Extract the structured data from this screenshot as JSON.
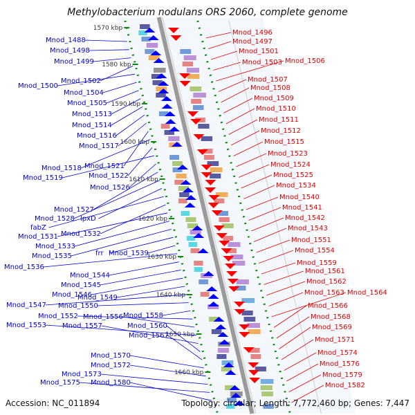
{
  "title": "Methylobacterium nodulans ORS 2060, complete genome",
  "footer": {
    "accession": "Accession: NC_011894",
    "stats": "Topology: circular; Length: 7,772,460 bp; Genes: 7,447"
  },
  "colors": {
    "left_label": "#0000cc",
    "right_label": "#dd0000",
    "backbone": "#9a9a9a",
    "dotted_track": "#0a8a0a",
    "forward_gene": "#0000ff",
    "reverse_gene": "#ff0000"
  },
  "scale_ticks": [
    "1570 kbp",
    "1580 kbp",
    "1590 kbp",
    "1600 kbp",
    "1610 kbp",
    "1620 kbp",
    "1630 kbp",
    "1640 kbp",
    "1650 kbp",
    "1660 kbp"
  ],
  "left_labels": [
    "Mnod_1488",
    "Mnod_1498",
    "Mnod_1499",
    "Mnod_1502",
    "Mnod_1500",
    "Mnod_1504",
    "Mnod_1505",
    "Mnod_1513",
    "Mnod_1514",
    "Mnod_1516",
    "Mnod_1517",
    "Mnod_1521",
    "Mnod_1518",
    "Mnod_1522",
    "Mnod_1519",
    "Mnod_1526",
    "Mnod_1527",
    "Mnod_1528",
    "lpxD",
    "fabZ",
    "Mnod_1532",
    "Mnod_1531",
    "Mnod_1533",
    "Mnod_1535",
    "frr",
    "Mnod_1539",
    "Mnod_1536",
    "Mnod_1544",
    "Mnod_1545",
    "Mnod_1546",
    "Mnod_1549",
    "Mnod_1547",
    "Mnod_1550",
    "Mnod_1558",
    "Mnod_1552",
    "Mnod_1556",
    "Mnod_1553",
    "Mnod_1557",
    "Mnod_1560",
    "Mnod_1567",
    "Mnod_1570",
    "Mnod_1572",
    "Mnod_1573",
    "Mnod_1575",
    "Mnod_1580"
  ],
  "right_labels": [
    "Mnod_1496",
    "Mnod_1497",
    "Mnod_1501",
    "Mnod_1503",
    "Mnod_1506",
    "Mnod_1507",
    "Mnod_1508",
    "Mnod_1509",
    "Mnod_1510",
    "Mnod_1511",
    "Mnod_1512",
    "Mnod_1515",
    "Mnod_1523",
    "Mnod_1524",
    "Mnod_1525",
    "Mnod_1534",
    "Mnod_1540",
    "Mnod_1541",
    "Mnod_1542",
    "Mnod_1543",
    "Mnod_1551",
    "Mnod_1554",
    "Mnod_1559",
    "Mnod_1561",
    "Mnod_1562",
    "Mnod_1563",
    "Mnod_1564",
    "Mnod_1566",
    "Mnod_1568",
    "Mnod_1569",
    "Mnod_1571",
    "Mnod_1574",
    "Mnod_1576",
    "Mnod_1579",
    "Mnod_1582"
  ]
}
